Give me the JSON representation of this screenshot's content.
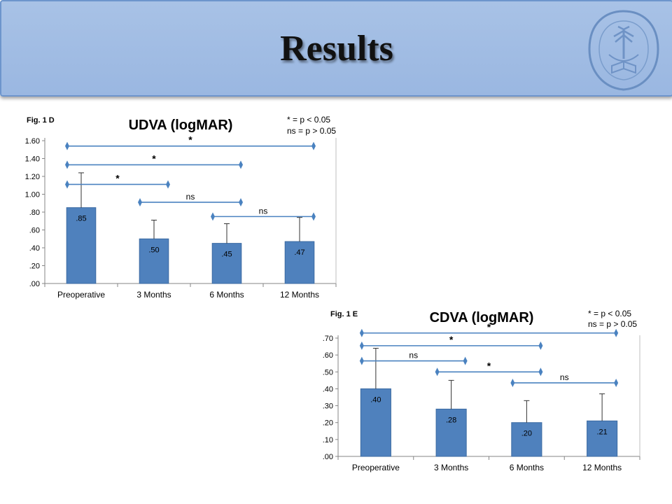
{
  "slide": {
    "title": "Results"
  },
  "colors": {
    "bar": "#4f81bd",
    "bar_edge": "#3b6aa2",
    "marker": "#4a82c0",
    "header": "#9ab7e1"
  },
  "icons": {
    "logo": "university-seal-icon"
  },
  "chart_data": [
    {
      "type": "bar",
      "fig_label": "Fig. 1 D",
      "title": "UDVA (logMAR)",
      "legend_lines": [
        "* = p < 0.05",
        "ns = p > 0.05"
      ],
      "categories": [
        "Preoperative",
        "3 Months",
        "6 Months",
        "12 Months"
      ],
      "values": [
        0.85,
        0.5,
        0.45,
        0.47
      ],
      "value_labels": [
        ".85",
        ".50",
        ".45",
        ".47"
      ],
      "error_upper": [
        1.24,
        0.71,
        0.67,
        0.74
      ],
      "ylim": [
        0,
        1.6
      ],
      "yticks": [
        0,
        0.2,
        0.4,
        0.6,
        0.8,
        1.0,
        1.2,
        1.4,
        1.6
      ],
      "ytick_labels": [
        ".00",
        ".20",
        ".40",
        ".60",
        ".80",
        "1.00",
        "1.20",
        "1.40",
        "1.60"
      ],
      "comparisons": [
        {
          "from": 0,
          "to": 3,
          "y": 1.54,
          "label": "*"
        },
        {
          "from": 0,
          "to": 2,
          "y": 1.33,
          "label": "*"
        },
        {
          "from": 0,
          "to": 1,
          "y": 1.11,
          "label": "*"
        },
        {
          "from": 1,
          "to": 2,
          "y": 0.91,
          "label": "ns"
        },
        {
          "from": 2,
          "to": 3,
          "y": 0.75,
          "label": "ns"
        }
      ]
    },
    {
      "type": "bar",
      "fig_label": "Fig. 1 E",
      "title": "CDVA (logMAR)",
      "legend_lines": [
        "* = p < 0.05",
        "ns = p > 0.05"
      ],
      "categories": [
        "Preoperative",
        "3 Months",
        "6 Months",
        "12 Months"
      ],
      "values": [
        0.4,
        0.28,
        0.2,
        0.21
      ],
      "value_labels": [
        ".40",
        ".28",
        ".20",
        ".21"
      ],
      "error_upper": [
        0.64,
        0.45,
        0.33,
        0.37
      ],
      "ylim": [
        0,
        0.7
      ],
      "yticks": [
        0,
        0.1,
        0.2,
        0.3,
        0.4,
        0.5,
        0.6,
        0.7
      ],
      "ytick_labels": [
        ".00",
        ".10",
        ".20",
        ".30",
        ".40",
        ".50",
        ".60",
        ".70"
      ],
      "comparisons": [
        {
          "from": 0,
          "to": 3,
          "y": 0.73,
          "label": "*"
        },
        {
          "from": 0,
          "to": 2,
          "y": 0.655,
          "label": "*"
        },
        {
          "from": 0,
          "to": 1,
          "y": 0.565,
          "label": "ns"
        },
        {
          "from": 1,
          "to": 2,
          "y": 0.5,
          "label": "*"
        },
        {
          "from": 2,
          "to": 3,
          "y": 0.435,
          "label": "ns"
        }
      ]
    }
  ]
}
